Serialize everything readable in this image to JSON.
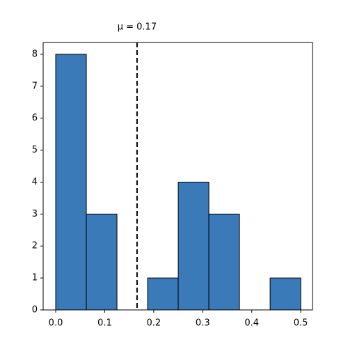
{
  "chart_data": {
    "type": "histogram",
    "bins": [
      0,
      0.0625,
      0.125,
      0.1875,
      0.25,
      0.3125,
      0.375,
      0.4375,
      0.5
    ],
    "values": [
      8,
      3,
      0,
      1,
      4,
      3,
      0,
      1
    ],
    "color": "#3a7ab9",
    "mean_line": {
      "value": 0.166,
      "label": "μ = 0.17"
    },
    "xlim": [
      -0.0256,
      0.524
    ],
    "xticks": [
      {
        "value": 0,
        "label": "0.0"
      },
      0.1,
      0.2,
      0.3,
      0.4,
      0.5
    ],
    "ylim": [
      0,
      8.37
    ],
    "yticks": [
      0,
      1,
      2,
      3,
      4,
      5,
      6,
      7,
      8
    ],
    "grid": false
  }
}
